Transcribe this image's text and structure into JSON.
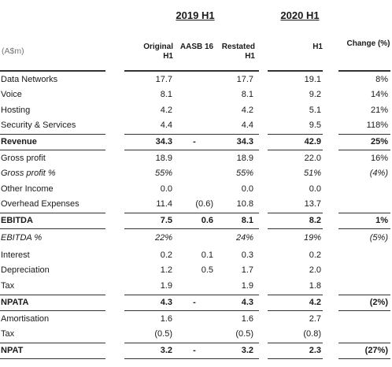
{
  "groups": [
    "2019 H1",
    "2020 H1"
  ],
  "columns": [
    "(A$m)",
    "Original H1",
    "AASB 16",
    "Restated H1",
    "H1",
    "Change (%)"
  ],
  "rows": [
    [
      "Data Networks",
      "17.7",
      null,
      "17.7",
      "19.1",
      "8%"
    ],
    [
      "Voice",
      "8.1",
      null,
      "8.1",
      "9.2",
      "14%"
    ],
    [
      "Hosting",
      "4.2",
      null,
      "4.2",
      "5.1",
      "21%"
    ],
    [
      "Security & Services",
      "4.4",
      null,
      "4.4",
      "9.5",
      "118%"
    ],
    [
      "Revenue",
      "34.3",
      "-",
      "34.3",
      "42.9",
      "25%"
    ],
    [
      "Gross profit",
      "18.9",
      null,
      "18.9",
      "22.0",
      "16%"
    ],
    [
      "Gross profit %",
      "55%",
      null,
      "55%",
      "51%",
      "(4%)"
    ],
    [
      "Other Income",
      "0.0",
      null,
      "0.0",
      "0.0",
      null
    ],
    [
      "Overhead Expenses",
      "11.4",
      "(0.6)",
      "10.8",
      "13.7",
      null
    ],
    [
      "EBITDA",
      "7.5",
      "0.6",
      "8.1",
      "8.2",
      "1%"
    ],
    [
      "EBITDA %",
      "22%",
      null,
      "24%",
      "19%",
      "(5%)"
    ],
    [
      "Interest",
      "0.2",
      "0.1",
      "0.3",
      "0.2",
      null
    ],
    [
      "Depreciation",
      "1.2",
      "0.5",
      "1.7",
      "2.0",
      null
    ],
    [
      "Tax",
      "1.9",
      null,
      "1.9",
      "1.8",
      null
    ],
    [
      "NPATA",
      "4.3",
      "-",
      "4.3",
      "4.2",
      "(2%)"
    ],
    [
      "Amortisation",
      "1.6",
      null,
      "1.6",
      "2.7",
      null
    ],
    [
      "Tax",
      "(0.5)",
      null,
      "(0.5)",
      "(0.8)",
      null
    ],
    [
      "NPAT",
      "3.2",
      "-",
      "3.2",
      "2.3",
      "(27%)"
    ]
  ]
}
